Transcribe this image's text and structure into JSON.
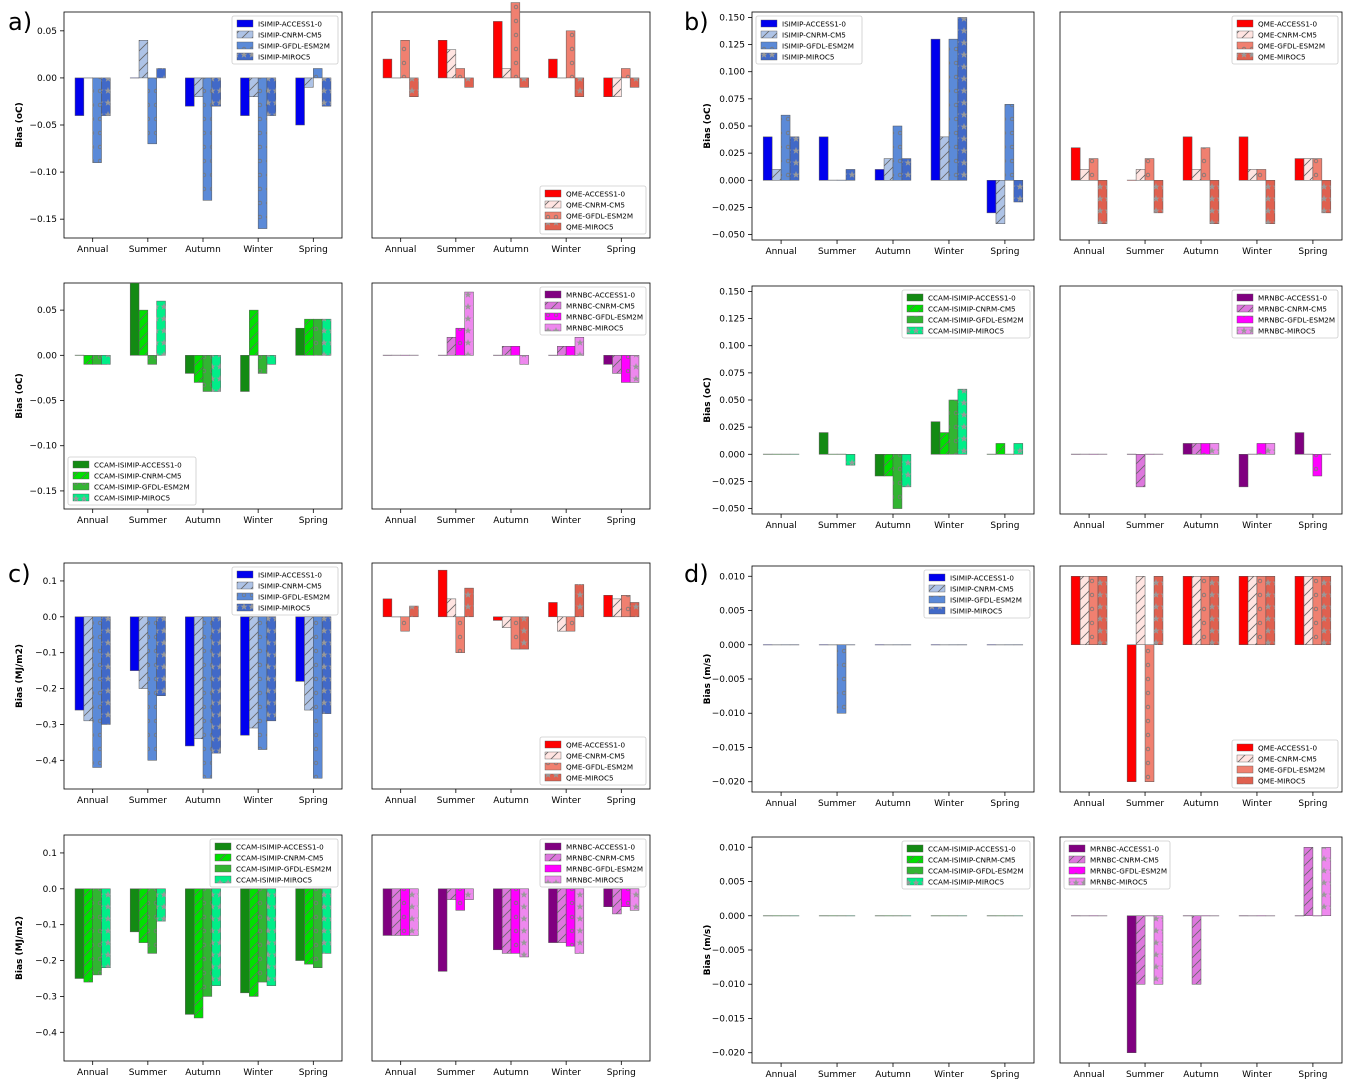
{
  "seasons": [
    "Annual",
    "Summer",
    "Autumn",
    "Winter",
    "Spring"
  ],
  "colors": {
    "isimip": [
      "#0000ee",
      "#aec3e6",
      "#5b8ad8",
      "#4169c8"
    ],
    "qme": [
      "#ff0000",
      "#ffe4e1",
      "#f08070",
      "#e0604f"
    ],
    "ccam": [
      "#138a13",
      "#00e000",
      "#32b432",
      "#00ee88"
    ],
    "mrnbc": [
      "#800080",
      "#dd77dd",
      "#ff00ff",
      "#ee88ee"
    ]
  },
  "legends": {
    "isimip": [
      "ISIMIP-ACCESS1-0",
      "ISIMIP-CNRM-CM5",
      "ISIMIP-GFDL-ESM2M",
      "ISIMIP-MIROC5"
    ],
    "qme": [
      "QME-ACCESS1-0",
      "QME-CNRM-CM5",
      "QME-GFDL-ESM2M",
      "QME-MIROC5"
    ],
    "ccam": [
      "CCAM-ISIMIP-ACCESS1-0",
      "CCAM-ISIMIP-CNRM-CM5",
      "CCAM-ISIMIP-GFDL-ESM2M",
      "CCAM-ISIMIP-MIROC5"
    ],
    "mrnbc": [
      "MRNBC-ACCESS1-0",
      "MRNBC-CNRM-CM5",
      "MRNBC-GFDL-ESM2M",
      "MRNBC-MIROC5"
    ]
  },
  "panel_labels": [
    "a)",
    "b)",
    "c)",
    "d)"
  ],
  "chart_data": [
    {
      "type": "bar",
      "group": "isimip",
      "ylabel": "Bias (oC)",
      "ylim": [
        -0.17,
        0.07
      ],
      "yticks": [
        0.05,
        0.0,
        -0.05,
        -0.1,
        -0.15
      ],
      "tick_fmt": 2,
      "legend": "top-right",
      "series": [
        [
          -0.04,
          0,
          -0.03,
          -0.04,
          -0.05
        ],
        [
          0,
          0.04,
          -0.02,
          -0.02,
          -0.01
        ],
        [
          -0.09,
          -0.07,
          -0.13,
          -0.16,
          0.01
        ],
        [
          -0.04,
          0.01,
          -0.03,
          -0.04,
          -0.03
        ]
      ]
    },
    {
      "type": "bar",
      "group": "qme",
      "ylabel": "",
      "ylim": [
        -0.17,
        0.07
      ],
      "yticks": [],
      "tick_fmt": 2,
      "legend": "bottom-right",
      "series": [
        [
          0.02,
          0.04,
          0.06,
          0.02,
          -0.02
        ],
        [
          0,
          0.03,
          0.01,
          0,
          -0.02
        ],
        [
          0.04,
          0.01,
          0.08,
          0.05,
          0.01
        ],
        [
          -0.02,
          -0.01,
          -0.01,
          -0.02,
          -0.01
        ]
      ]
    },
    {
      "type": "bar",
      "group": "ccam",
      "ylabel": "Bias (oC)",
      "ylim": [
        -0.17,
        0.08
      ],
      "yticks": [
        0.05,
        0.0,
        -0.05,
        -0.1,
        -0.15
      ],
      "tick_fmt": 2,
      "legend": "bottom-left",
      "series": [
        [
          0,
          0.08,
          -0.02,
          -0.04,
          0.03
        ],
        [
          -0.01,
          0.05,
          -0.03,
          0.05,
          0.04
        ],
        [
          -0.01,
          -0.01,
          -0.04,
          -0.02,
          0.04
        ],
        [
          -0.01,
          0.06,
          -0.04,
          -0.01,
          0.04
        ]
      ]
    },
    {
      "type": "bar",
      "group": "mrnbc",
      "ylabel": "",
      "ylim": [
        -0.17,
        0.08
      ],
      "yticks": [],
      "tick_fmt": 2,
      "legend": "top-right",
      "series": [
        [
          0,
          0,
          0,
          0,
          -0.01
        ],
        [
          0,
          0.02,
          0.01,
          0.01,
          -0.02
        ],
        [
          0,
          0.03,
          0.01,
          0.01,
          -0.03
        ],
        [
          0,
          0.07,
          -0.01,
          0.02,
          -0.03
        ]
      ]
    },
    {
      "type": "bar",
      "group": "isimip",
      "ylabel": "Bias (oC)",
      "ylim": [
        -0.055,
        0.155
      ],
      "yticks": [
        0.15,
        0.125,
        0.1,
        0.075,
        0.05,
        0.025,
        0.0,
        -0.025,
        -0.05
      ],
      "tick_fmt": 3,
      "legend": "top-left",
      "series": [
        [
          0.04,
          0.04,
          0.01,
          0.13,
          -0.03
        ],
        [
          0.01,
          0,
          0.02,
          0.04,
          -0.04
        ],
        [
          0.06,
          0,
          0.05,
          0.13,
          0.07
        ],
        [
          0.04,
          0.01,
          0.02,
          0.15,
          -0.02
        ]
      ]
    },
    {
      "type": "bar",
      "group": "qme",
      "ylabel": "",
      "ylim": [
        -0.055,
        0.155
      ],
      "yticks": [],
      "tick_fmt": 3,
      "legend": "top-right",
      "series": [
        [
          0.03,
          0,
          0.04,
          0.04,
          0.02
        ],
        [
          0.01,
          0.01,
          0.01,
          0.01,
          0.02
        ],
        [
          0.02,
          0.02,
          0.03,
          0.01,
          0.02
        ],
        [
          -0.04,
          -0.03,
          -0.04,
          -0.04,
          -0.03
        ]
      ]
    },
    {
      "type": "bar",
      "group": "ccam",
      "ylabel": "Bias (oC)",
      "ylim": [
        -0.055,
        0.155
      ],
      "yticks": [
        0.15,
        0.125,
        0.1,
        0.075,
        0.05,
        0.025,
        0.0,
        -0.025,
        -0.05
      ],
      "tick_fmt": 3,
      "legend": "top-right",
      "series": [
        [
          0,
          0.02,
          -0.02,
          0.03,
          0
        ],
        [
          0,
          0,
          -0.02,
          0.02,
          0.01
        ],
        [
          0,
          0,
          -0.05,
          0.05,
          0
        ],
        [
          0,
          -0.01,
          -0.03,
          0.06,
          0.01
        ]
      ]
    },
    {
      "type": "bar",
      "group": "mrnbc",
      "ylabel": "",
      "ylim": [
        -0.055,
        0.155
      ],
      "yticks": [],
      "tick_fmt": 3,
      "legend": "top-right",
      "series": [
        [
          0,
          0,
          0.01,
          -0.03,
          0.02
        ],
        [
          0,
          -0.03,
          0.01,
          0,
          0
        ],
        [
          0,
          0,
          0.01,
          0.01,
          -0.02
        ],
        [
          0,
          0,
          0.01,
          0.01,
          0
        ]
      ]
    },
    {
      "type": "bar",
      "group": "isimip",
      "ylabel": "Bias (MJ/m2)",
      "ylim": [
        -0.48,
        0.15
      ],
      "yticks": [
        0.1,
        0.0,
        -0.1,
        -0.2,
        -0.3,
        -0.4
      ],
      "tick_fmt": 1,
      "legend": "top-right",
      "series": [
        [
          -0.26,
          -0.15,
          -0.36,
          -0.33,
          -0.18
        ],
        [
          -0.29,
          -0.2,
          -0.34,
          -0.31,
          -0.26
        ],
        [
          -0.42,
          -0.4,
          -0.45,
          -0.37,
          -0.45
        ],
        [
          -0.3,
          -0.22,
          -0.38,
          -0.29,
          -0.27
        ]
      ]
    },
    {
      "type": "bar",
      "group": "qme",
      "ylabel": "",
      "ylim": [
        -0.48,
        0.15
      ],
      "yticks": [],
      "tick_fmt": 1,
      "legend": "bottom-right",
      "series": [
        [
          0.05,
          0.13,
          -0.01,
          0.04,
          0.06
        ],
        [
          0,
          0.05,
          -0.03,
          -0.04,
          0.05
        ],
        [
          -0.04,
          -0.1,
          -0.09,
          -0.04,
          0.06
        ],
        [
          0.03,
          0.08,
          -0.09,
          0.09,
          0.04
        ]
      ]
    },
    {
      "type": "bar",
      "group": "ccam",
      "ylabel": "Bias (MJ/m2)",
      "ylim": [
        -0.48,
        0.15
      ],
      "yticks": [
        0.1,
        0.0,
        -0.1,
        -0.2,
        -0.3,
        -0.4
      ],
      "tick_fmt": 1,
      "legend": "top-right",
      "series": [
        [
          -0.25,
          -0.12,
          -0.35,
          -0.29,
          -0.2
        ],
        [
          -0.26,
          -0.15,
          -0.36,
          -0.3,
          -0.21
        ],
        [
          -0.24,
          -0.18,
          -0.3,
          -0.26,
          -0.22
        ],
        [
          -0.22,
          -0.09,
          -0.27,
          -0.27,
          -0.18
        ]
      ]
    },
    {
      "type": "bar",
      "group": "mrnbc",
      "ylabel": "",
      "ylim": [
        -0.48,
        0.15
      ],
      "yticks": [],
      "tick_fmt": 1,
      "legend": "top-right",
      "series": [
        [
          -0.13,
          -0.23,
          -0.17,
          -0.15,
          -0.05
        ],
        [
          -0.13,
          -0.03,
          -0.18,
          -0.15,
          -0.07
        ],
        [
          -0.13,
          -0.06,
          -0.18,
          -0.16,
          -0.05
        ],
        [
          -0.13,
          -0.03,
          -0.19,
          -0.18,
          -0.06
        ]
      ]
    },
    {
      "type": "bar",
      "group": "isimip",
      "ylabel": "Bias (m/s)",
      "ylim": [
        -0.0215,
        0.0115
      ],
      "yticks": [
        0.01,
        0.005,
        0.0,
        -0.005,
        -0.01,
        -0.015,
        -0.02
      ],
      "tick_fmt": 3,
      "legend": "top-right",
      "series": [
        [
          0,
          0,
          0,
          0,
          0
        ],
        [
          0,
          0,
          0,
          0,
          0
        ],
        [
          0,
          -0.01,
          0,
          0,
          0
        ],
        [
          0,
          0,
          0,
          0,
          0
        ]
      ]
    },
    {
      "type": "bar",
      "group": "qme",
      "ylabel": "",
      "ylim": [
        -0.0215,
        0.0115
      ],
      "yticks": [],
      "tick_fmt": 3,
      "legend": "bottom-right",
      "series": [
        [
          0.01,
          -0.02,
          0.01,
          0.01,
          0.01
        ],
        [
          0.01,
          0.01,
          0.01,
          0.01,
          0.01
        ],
        [
          0.01,
          -0.02,
          0.01,
          0.01,
          0.01
        ],
        [
          0.01,
          0.01,
          0.01,
          0.01,
          0.01
        ]
      ]
    },
    {
      "type": "bar",
      "group": "ccam",
      "ylabel": "Bias (m/s)",
      "ylim": [
        -0.0215,
        0.0115
      ],
      "yticks": [
        0.01,
        0.005,
        0.0,
        -0.005,
        -0.01,
        -0.015,
        -0.02
      ],
      "tick_fmt": 3,
      "legend": "top-right",
      "series": [
        [
          0,
          0,
          0,
          0,
          0
        ],
        [
          0,
          0,
          0,
          0,
          0
        ],
        [
          0,
          0,
          0,
          0,
          0
        ],
        [
          0,
          0,
          0,
          0,
          0
        ]
      ]
    },
    {
      "type": "bar",
      "group": "mrnbc",
      "ylabel": "",
      "ylim": [
        -0.0215,
        0.0115
      ],
      "yticks": [],
      "tick_fmt": 3,
      "legend": "top-left",
      "series": [
        [
          0,
          -0.02,
          0,
          0,
          0
        ],
        [
          0,
          -0.01,
          -0.01,
          0,
          0.01
        ],
        [
          0,
          0,
          0,
          0,
          0
        ],
        [
          0,
          -0.01,
          0,
          0,
          0.01
        ]
      ]
    }
  ]
}
